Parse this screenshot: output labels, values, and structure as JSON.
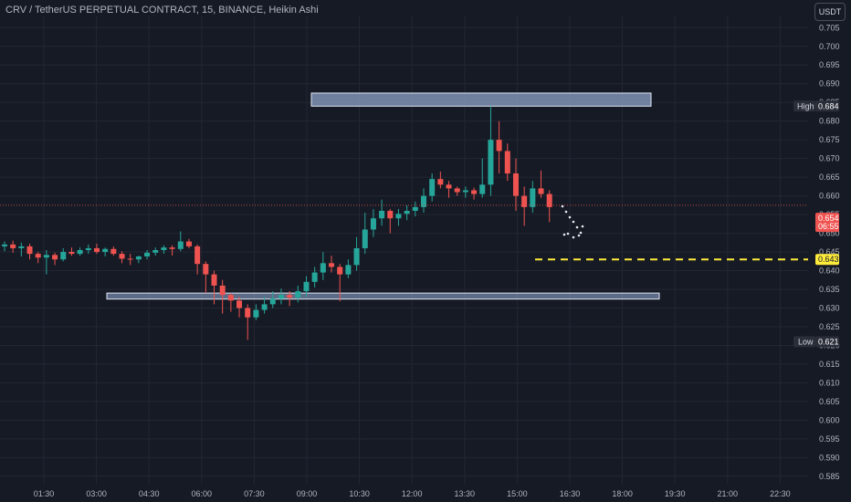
{
  "header": {
    "title": "CRV / TetherUS PERPETUAL CONTRACT, 15, BINANCE, Heikin Ashi",
    "currency": "USDT"
  },
  "colors": {
    "background": "#161a25",
    "up": "#26a69a",
    "down": "#ef5350",
    "grid": "#232733",
    "zone": "#8ea3c8",
    "dashed": "#ffeb3b"
  },
  "chart_data": {
    "type": "candlestick",
    "title": "CRV / TetherUS PERPETUAL CONTRACT, 15, BINANCE, Heikin Ashi",
    "ylim": [
      0.583,
      0.708
    ],
    "y_ticks": [
      "0.705",
      "0.700",
      "0.695",
      "0.690",
      "0.685",
      "0.680",
      "0.675",
      "0.670",
      "0.665",
      "0.660",
      "0.655",
      "0.650",
      "0.645",
      "0.640",
      "0.635",
      "0.630",
      "0.625",
      "0.620",
      "0.615",
      "0.610",
      "0.605",
      "0.600",
      "0.595",
      "0.590",
      "0.585"
    ],
    "x_ticks": [
      "01:30",
      "03:00",
      "04:30",
      "06:00",
      "07:30",
      "09:00",
      "10:30",
      "12:00",
      "13:30",
      "15:00",
      "16:30",
      "18:00",
      "19:30",
      "21:00",
      "22:30"
    ],
    "candles": [
      {
        "o": 0.6465,
        "h": 0.6478,
        "l": 0.6452,
        "c": 0.647
      },
      {
        "o": 0.647,
        "h": 0.648,
        "l": 0.6448,
        "c": 0.646
      },
      {
        "o": 0.646,
        "h": 0.6475,
        "l": 0.6438,
        "c": 0.6465
      },
      {
        "o": 0.6465,
        "h": 0.6472,
        "l": 0.643,
        "c": 0.6445
      },
      {
        "o": 0.6445,
        "h": 0.645,
        "l": 0.642,
        "c": 0.6435
      },
      {
        "o": 0.6435,
        "h": 0.6455,
        "l": 0.639,
        "c": 0.6442
      },
      {
        "o": 0.6442,
        "h": 0.6448,
        "l": 0.6415,
        "c": 0.643
      },
      {
        "o": 0.643,
        "h": 0.646,
        "l": 0.6425,
        "c": 0.645
      },
      {
        "o": 0.645,
        "h": 0.6462,
        "l": 0.644,
        "c": 0.6445
      },
      {
        "o": 0.6445,
        "h": 0.6462,
        "l": 0.644,
        "c": 0.6455
      },
      {
        "o": 0.6455,
        "h": 0.647,
        "l": 0.6445,
        "c": 0.646
      },
      {
        "o": 0.646,
        "h": 0.6472,
        "l": 0.6445,
        "c": 0.645
      },
      {
        "o": 0.645,
        "h": 0.6462,
        "l": 0.6438,
        "c": 0.6458
      },
      {
        "o": 0.6458,
        "h": 0.6465,
        "l": 0.644,
        "c": 0.6445
      },
      {
        "o": 0.6445,
        "h": 0.6452,
        "l": 0.642,
        "c": 0.6432
      },
      {
        "o": 0.6432,
        "h": 0.6445,
        "l": 0.6415,
        "c": 0.643
      },
      {
        "o": 0.643,
        "h": 0.644,
        "l": 0.642,
        "c": 0.6438
      },
      {
        "o": 0.6438,
        "h": 0.6455,
        "l": 0.643,
        "c": 0.6448
      },
      {
        "o": 0.6448,
        "h": 0.6462,
        "l": 0.644,
        "c": 0.6455
      },
      {
        "o": 0.6455,
        "h": 0.6468,
        "l": 0.6445,
        "c": 0.6462
      },
      {
        "o": 0.6462,
        "h": 0.6468,
        "l": 0.644,
        "c": 0.6458
      },
      {
        "o": 0.6458,
        "h": 0.6505,
        "l": 0.6452,
        "c": 0.6478
      },
      {
        "o": 0.6478,
        "h": 0.6485,
        "l": 0.646,
        "c": 0.6465
      },
      {
        "o": 0.6465,
        "h": 0.647,
        "l": 0.639,
        "c": 0.6418
      },
      {
        "o": 0.6418,
        "h": 0.6425,
        "l": 0.634,
        "c": 0.639
      },
      {
        "o": 0.639,
        "h": 0.64,
        "l": 0.631,
        "c": 0.636
      },
      {
        "o": 0.636,
        "h": 0.6375,
        "l": 0.6285,
        "c": 0.6335
      },
      {
        "o": 0.6335,
        "h": 0.634,
        "l": 0.629,
        "c": 0.632
      },
      {
        "o": 0.632,
        "h": 0.633,
        "l": 0.6275,
        "c": 0.63
      },
      {
        "o": 0.63,
        "h": 0.631,
        "l": 0.6215,
        "c": 0.6275
      },
      {
        "o": 0.6275,
        "h": 0.631,
        "l": 0.6268,
        "c": 0.6295
      },
      {
        "o": 0.6295,
        "h": 0.633,
        "l": 0.6285,
        "c": 0.631
      },
      {
        "o": 0.631,
        "h": 0.6345,
        "l": 0.63,
        "c": 0.6325
      },
      {
        "o": 0.6325,
        "h": 0.6352,
        "l": 0.631,
        "c": 0.6335
      },
      {
        "o": 0.6335,
        "h": 0.6345,
        "l": 0.6305,
        "c": 0.6328
      },
      {
        "o": 0.6328,
        "h": 0.636,
        "l": 0.6315,
        "c": 0.6345
      },
      {
        "o": 0.6345,
        "h": 0.6385,
        "l": 0.633,
        "c": 0.637
      },
      {
        "o": 0.637,
        "h": 0.641,
        "l": 0.6355,
        "c": 0.6395
      },
      {
        "o": 0.6395,
        "h": 0.645,
        "l": 0.6375,
        "c": 0.642
      },
      {
        "o": 0.642,
        "h": 0.644,
        "l": 0.6395,
        "c": 0.641
      },
      {
        "o": 0.641,
        "h": 0.6418,
        "l": 0.6318,
        "c": 0.639
      },
      {
        "o": 0.639,
        "h": 0.643,
        "l": 0.638,
        "c": 0.6415
      },
      {
        "o": 0.6415,
        "h": 0.649,
        "l": 0.64,
        "c": 0.646
      },
      {
        "o": 0.646,
        "h": 0.6555,
        "l": 0.6445,
        "c": 0.651
      },
      {
        "o": 0.651,
        "h": 0.6565,
        "l": 0.649,
        "c": 0.654
      },
      {
        "o": 0.654,
        "h": 0.659,
        "l": 0.652,
        "c": 0.656
      },
      {
        "o": 0.656,
        "h": 0.6565,
        "l": 0.65,
        "c": 0.654
      },
      {
        "o": 0.654,
        "h": 0.6565,
        "l": 0.652,
        "c": 0.6552
      },
      {
        "o": 0.6552,
        "h": 0.6575,
        "l": 0.6535,
        "c": 0.656
      },
      {
        "o": 0.656,
        "h": 0.6585,
        "l": 0.6545,
        "c": 0.657
      },
      {
        "o": 0.657,
        "h": 0.662,
        "l": 0.6555,
        "c": 0.66
      },
      {
        "o": 0.66,
        "h": 0.666,
        "l": 0.6585,
        "c": 0.6645
      },
      {
        "o": 0.6645,
        "h": 0.6665,
        "l": 0.662,
        "c": 0.663
      },
      {
        "o": 0.663,
        "h": 0.664,
        "l": 0.6595,
        "c": 0.662
      },
      {
        "o": 0.662,
        "h": 0.6625,
        "l": 0.66,
        "c": 0.661
      },
      {
        "o": 0.661,
        "h": 0.6625,
        "l": 0.6595,
        "c": 0.6615
      },
      {
        "o": 0.6615,
        "h": 0.6622,
        "l": 0.659,
        "c": 0.6605
      },
      {
        "o": 0.6605,
        "h": 0.67,
        "l": 0.6595,
        "c": 0.663
      },
      {
        "o": 0.663,
        "h": 0.684,
        "l": 0.66,
        "c": 0.675
      },
      {
        "o": 0.675,
        "h": 0.68,
        "l": 0.666,
        "c": 0.672
      },
      {
        "o": 0.672,
        "h": 0.674,
        "l": 0.664,
        "c": 0.666
      },
      {
        "o": 0.666,
        "h": 0.67,
        "l": 0.656,
        "c": 0.66
      },
      {
        "o": 0.66,
        "h": 0.6625,
        "l": 0.652,
        "c": 0.657
      },
      {
        "o": 0.657,
        "h": 0.664,
        "l": 0.6555,
        "c": 0.662
      },
      {
        "o": 0.662,
        "h": 0.6668,
        "l": 0.6595,
        "c": 0.6605
      },
      {
        "o": 0.6605,
        "h": 0.6615,
        "l": 0.653,
        "c": 0.657
      }
    ],
    "resistance_zone": [
      0.684,
      0.6875
    ],
    "support_zone": [
      0.6324,
      0.634
    ],
    "dashed_level": 0.643,
    "labels": [
      {
        "tag": "High",
        "value": "0.684"
      },
      {
        "tag": "Low",
        "value": "0.621"
      }
    ],
    "last_price": {
      "value": "0.654",
      "countdown": "06:55"
    },
    "level_label": "0.643"
  }
}
